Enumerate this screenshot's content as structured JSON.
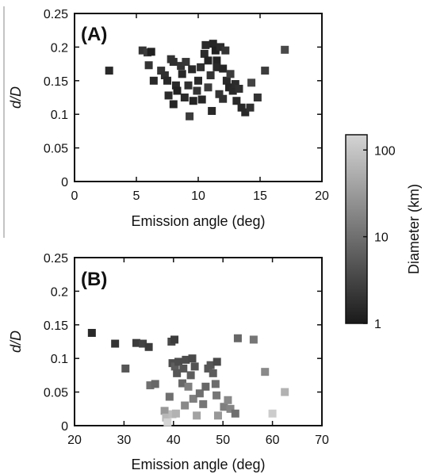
{
  "chart_data": [
    {
      "panel": "(A)",
      "type": "scatter",
      "xlabel": "Emission angle (deg)",
      "ylabel": "d/D",
      "xlim": [
        0,
        20
      ],
      "ylim": [
        0,
        0.25
      ],
      "xticks": [
        "0",
        "5",
        "10",
        "15",
        "20"
      ],
      "yticks": [
        "0",
        "0.05",
        "0.1",
        "0.15",
        "0.2",
        "0.25"
      ],
      "marker": "square",
      "color_by": "diameter_km",
      "points": [
        {
          "x": 2.8,
          "y": 0.165,
          "d": 1.5
        },
        {
          "x": 5.5,
          "y": 0.195,
          "d": 2.0
        },
        {
          "x": 5.9,
          "y": 0.192,
          "d": 2.5
        },
        {
          "x": 6.2,
          "y": 0.193,
          "d": 1.2
        },
        {
          "x": 6.0,
          "y": 0.173,
          "d": 2.0
        },
        {
          "x": 6.4,
          "y": 0.15,
          "d": 1.5
        },
        {
          "x": 7.0,
          "y": 0.165,
          "d": 2.0
        },
        {
          "x": 7.3,
          "y": 0.158,
          "d": 1.8
        },
        {
          "x": 7.5,
          "y": 0.15,
          "d": 1.5
        },
        {
          "x": 7.8,
          "y": 0.182,
          "d": 2.0
        },
        {
          "x": 8.0,
          "y": 0.178,
          "d": 1.8
        },
        {
          "x": 8.2,
          "y": 0.143,
          "d": 1.5
        },
        {
          "x": 7.6,
          "y": 0.128,
          "d": 1.6
        },
        {
          "x": 8.0,
          "y": 0.115,
          "d": 1.4
        },
        {
          "x": 8.3,
          "y": 0.135,
          "d": 1.2
        },
        {
          "x": 8.6,
          "y": 0.172,
          "d": 2.0
        },
        {
          "x": 8.7,
          "y": 0.16,
          "d": 1.5
        },
        {
          "x": 8.9,
          "y": 0.125,
          "d": 1.6
        },
        {
          "x": 9.0,
          "y": 0.178,
          "d": 2.2
        },
        {
          "x": 9.2,
          "y": 0.143,
          "d": 1.8
        },
        {
          "x": 9.3,
          "y": 0.097,
          "d": 2.5
        },
        {
          "x": 9.5,
          "y": 0.167,
          "d": 1.5
        },
        {
          "x": 9.6,
          "y": 0.12,
          "d": 1.3
        },
        {
          "x": 9.9,
          "y": 0.135,
          "d": 2.0
        },
        {
          "x": 10.0,
          "y": 0.15,
          "d": 1.5
        },
        {
          "x": 10.2,
          "y": 0.17,
          "d": 1.8
        },
        {
          "x": 10.3,
          "y": 0.122,
          "d": 1.4
        },
        {
          "x": 10.5,
          "y": 0.19,
          "d": 1.6
        },
        {
          "x": 10.6,
          "y": 0.203,
          "d": 1.5
        },
        {
          "x": 10.8,
          "y": 0.18,
          "d": 1.3
        },
        {
          "x": 10.8,
          "y": 0.14,
          "d": 2.5
        },
        {
          "x": 11.0,
          "y": 0.158,
          "d": 2.0
        },
        {
          "x": 11.1,
          "y": 0.105,
          "d": 1.5
        },
        {
          "x": 11.2,
          "y": 0.205,
          "d": 1.4
        },
        {
          "x": 11.4,
          "y": 0.195,
          "d": 1.2
        },
        {
          "x": 11.5,
          "y": 0.18,
          "d": 1.3
        },
        {
          "x": 11.5,
          "y": 0.17,
          "d": 1.5
        },
        {
          "x": 11.7,
          "y": 0.13,
          "d": 2.0
        },
        {
          "x": 11.8,
          "y": 0.2,
          "d": 1.6
        },
        {
          "x": 12.0,
          "y": 0.168,
          "d": 1.4
        },
        {
          "x": 12.0,
          "y": 0.123,
          "d": 1.8
        },
        {
          "x": 12.2,
          "y": 0.195,
          "d": 2.0
        },
        {
          "x": 12.3,
          "y": 0.15,
          "d": 1.5
        },
        {
          "x": 12.5,
          "y": 0.14,
          "d": 1.4
        },
        {
          "x": 12.6,
          "y": 0.16,
          "d": 2.5
        },
        {
          "x": 12.8,
          "y": 0.135,
          "d": 1.5
        },
        {
          "x": 13.0,
          "y": 0.145,
          "d": 1.6
        },
        {
          "x": 13.1,
          "y": 0.12,
          "d": 1.5
        },
        {
          "x": 13.3,
          "y": 0.138,
          "d": 1.8
        },
        {
          "x": 13.5,
          "y": 0.11,
          "d": 1.5
        },
        {
          "x": 13.8,
          "y": 0.103,
          "d": 1.5
        },
        {
          "x": 14.2,
          "y": 0.11,
          "d": 1.8
        },
        {
          "x": 14.8,
          "y": 0.125,
          "d": 2.0
        },
        {
          "x": 14.3,
          "y": 0.147,
          "d": 3.0
        },
        {
          "x": 15.4,
          "y": 0.165,
          "d": 2.5
        },
        {
          "x": 17.0,
          "y": 0.196,
          "d": 3.5
        }
      ]
    },
    {
      "panel": "(B)",
      "type": "scatter",
      "xlabel": "Emission angle (deg)",
      "ylabel": "d/D",
      "xlim": [
        20,
        70
      ],
      "ylim": [
        0,
        0.25
      ],
      "xticks": [
        "20",
        "30",
        "40",
        "50",
        "60",
        "70"
      ],
      "yticks": [
        "0",
        "0.05",
        "0.1",
        "0.15",
        "0.2",
        "0.25"
      ],
      "marker": "square",
      "color_by": "diameter_km",
      "points": [
        {
          "x": 23.5,
          "y": 0.138,
          "d": 1.5
        },
        {
          "x": 28.2,
          "y": 0.122,
          "d": 2.0
        },
        {
          "x": 32.5,
          "y": 0.123,
          "d": 2.5
        },
        {
          "x": 33.8,
          "y": 0.122,
          "d": 3.0
        },
        {
          "x": 35.0,
          "y": 0.117,
          "d": 2.5
        },
        {
          "x": 30.3,
          "y": 0.085,
          "d": 5.0
        },
        {
          "x": 35.3,
          "y": 0.06,
          "d": 10.0
        },
        {
          "x": 36.3,
          "y": 0.062,
          "d": 8.0
        },
        {
          "x": 38.2,
          "y": 0.022,
          "d": 30.0
        },
        {
          "x": 38.5,
          "y": 0.012,
          "d": 70.0
        },
        {
          "x": 38.8,
          "y": 0.005,
          "d": 150.0
        },
        {
          "x": 39.8,
          "y": 0.017,
          "d": 80.0
        },
        {
          "x": 39.2,
          "y": 0.043,
          "d": 10.0
        },
        {
          "x": 39.6,
          "y": 0.125,
          "d": 3.5
        },
        {
          "x": 40.2,
          "y": 0.128,
          "d": 2.5
        },
        {
          "x": 39.8,
          "y": 0.093,
          "d": 4.0
        },
        {
          "x": 40.3,
          "y": 0.088,
          "d": 6.0
        },
        {
          "x": 40.7,
          "y": 0.078,
          "d": 5.0
        },
        {
          "x": 41.0,
          "y": 0.095,
          "d": 4.0
        },
        {
          "x": 40.5,
          "y": 0.018,
          "d": 60.0
        },
        {
          "x": 41.8,
          "y": 0.063,
          "d": 8.0
        },
        {
          "x": 42.0,
          "y": 0.085,
          "d": 5.0
        },
        {
          "x": 42.5,
          "y": 0.098,
          "d": 4.0
        },
        {
          "x": 43.0,
          "y": 0.058,
          "d": 15.0
        },
        {
          "x": 43.5,
          "y": 0.075,
          "d": 6.0
        },
        {
          "x": 43.8,
          "y": 0.1,
          "d": 3.5
        },
        {
          "x": 44.3,
          "y": 0.088,
          "d": 4.5
        },
        {
          "x": 42.3,
          "y": 0.03,
          "d": 20.0
        },
        {
          "x": 44.0,
          "y": 0.04,
          "d": 15.0
        },
        {
          "x": 44.7,
          "y": 0.015,
          "d": 40.0
        },
        {
          "x": 45.3,
          "y": 0.048,
          "d": 10.0
        },
        {
          "x": 46.0,
          "y": 0.032,
          "d": 12.0
        },
        {
          "x": 46.5,
          "y": 0.058,
          "d": 8.0
        },
        {
          "x": 47.0,
          "y": 0.085,
          "d": 5.0
        },
        {
          "x": 47.5,
          "y": 0.09,
          "d": 5.0
        },
        {
          "x": 48.0,
          "y": 0.078,
          "d": 6.0
        },
        {
          "x": 48.5,
          "y": 0.062,
          "d": 9.0
        },
        {
          "x": 48.7,
          "y": 0.045,
          "d": 12.0
        },
        {
          "x": 49.0,
          "y": 0.015,
          "d": 30.0
        },
        {
          "x": 48.8,
          "y": 0.095,
          "d": 3.5
        },
        {
          "x": 50.2,
          "y": 0.028,
          "d": 15.0
        },
        {
          "x": 51.0,
          "y": 0.038,
          "d": 20.0
        },
        {
          "x": 51.5,
          "y": 0.025,
          "d": 18.0
        },
        {
          "x": 52.5,
          "y": 0.018,
          "d": 10.0
        },
        {
          "x": 53.0,
          "y": 0.13,
          "d": 8.0
        },
        {
          "x": 56.2,
          "y": 0.128,
          "d": 12.0
        },
        {
          "x": 58.5,
          "y": 0.08,
          "d": 20.0
        },
        {
          "x": 60.0,
          "y": 0.018,
          "d": 120.0
        },
        {
          "x": 62.5,
          "y": 0.05,
          "d": 60.0
        }
      ]
    }
  ],
  "colorbar": {
    "label": "Diameter (km)",
    "ticks": [
      "1",
      "10",
      "100"
    ],
    "tick_values": [
      1,
      10,
      100
    ],
    "min": 1,
    "max": 150,
    "scale": "log",
    "color_low": "#1a1a1a",
    "color_high": "#d4d4d4"
  }
}
